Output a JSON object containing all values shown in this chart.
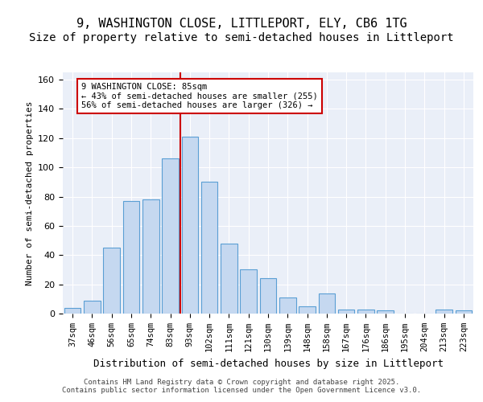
{
  "title1": "9, WASHINGTON CLOSE, LITTLEPORT, ELY, CB6 1TG",
  "title2": "Size of property relative to semi-detached houses in Littleport",
  "xlabel": "Distribution of semi-detached houses by size in Littleport",
  "ylabel": "Number of semi-detached properties",
  "categories": [
    "37sqm",
    "46sqm",
    "56sqm",
    "65sqm",
    "74sqm",
    "83sqm",
    "93sqm",
    "102sqm",
    "111sqm",
    "121sqm",
    "130sqm",
    "139sqm",
    "148sqm",
    "158sqm",
    "167sqm",
    "176sqm",
    "186sqm",
    "195sqm",
    "204sqm",
    "213sqm",
    "223sqm"
  ],
  "values": [
    4,
    9,
    45,
    77,
    78,
    106,
    121,
    90,
    48,
    30,
    24,
    11,
    5,
    14,
    3,
    3,
    2,
    0,
    0,
    3,
    2
  ],
  "bar_color": "#c5d8f0",
  "bar_edge_color": "#5a9fd4",
  "vline_color": "#cc0000",
  "annotation_text": "9 WASHINGTON CLOSE: 85sqm\n← 43% of semi-detached houses are smaller (255)\n56% of semi-detached houses are larger (326) →",
  "annotation_box_color": "#ffffff",
  "annotation_box_edge": "#cc0000",
  "ylim": [
    0,
    165
  ],
  "yticks": [
    0,
    20,
    40,
    60,
    80,
    100,
    120,
    140,
    160
  ],
  "background_color": "#eaeff8",
  "footer": "Contains HM Land Registry data © Crown copyright and database right 2025.\nContains public sector information licensed under the Open Government Licence v3.0.",
  "title_fontsize": 11,
  "subtitle_fontsize": 10
}
